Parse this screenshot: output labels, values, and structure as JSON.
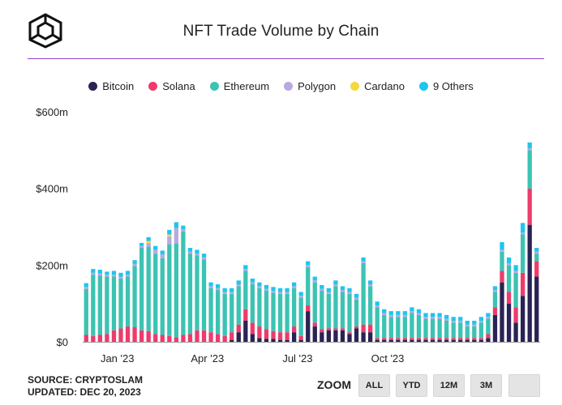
{
  "title": "NFT Trade Volume by Chain",
  "legend": [
    {
      "label": "Bitcoin",
      "color": "#2a2354"
    },
    {
      "label": "Solana",
      "color": "#ee3b6c"
    },
    {
      "label": "Ethereum",
      "color": "#3cc3b2"
    },
    {
      "label": "Polygon",
      "color": "#b9a9e0"
    },
    {
      "label": "Cardano",
      "color": "#f4d93c"
    },
    {
      "label": "9 Others",
      "color": "#1cc6ee"
    }
  ],
  "footer": {
    "source": "SOURCE: CRYPTOSLAM",
    "updated": "UPDATED: DEC 20, 2023"
  },
  "zoom": {
    "label": "ZOOM",
    "buttons": [
      "ALL",
      "YTD",
      "12M",
      "3M",
      ""
    ]
  },
  "chart_data": {
    "type": "bar",
    "stacked": true,
    "x_axis_ticks": [
      "Jan '23",
      "Apr '23",
      "Jul '23",
      "Oct '23"
    ],
    "y_axis_ticks": [
      "$0",
      "$200m",
      "$400m",
      "$600m"
    ],
    "ylim": [
      0,
      600
    ],
    "grid": false,
    "legend_position": "top",
    "series": [
      {
        "name": "Bitcoin",
        "color": "#2a2354",
        "values": [
          0,
          0,
          0,
          0,
          0,
          0,
          0,
          0,
          0,
          0,
          0,
          0,
          0,
          0,
          0,
          0,
          0,
          0,
          0,
          0,
          0,
          5,
          25,
          55,
          20,
          10,
          8,
          8,
          5,
          5,
          25,
          5,
          80,
          40,
          25,
          30,
          30,
          30,
          20,
          35,
          25,
          25,
          5,
          5,
          5,
          5,
          5,
          5,
          5,
          5,
          5,
          5,
          5,
          5,
          5,
          5,
          5,
          5,
          10,
          70,
          155,
          100,
          50,
          120,
          305,
          170
        ]
      },
      {
        "name": "Solana",
        "color": "#ee3b6c",
        "values": [
          18,
          15,
          18,
          20,
          30,
          35,
          40,
          38,
          30,
          28,
          20,
          18,
          15,
          12,
          18,
          20,
          30,
          30,
          25,
          20,
          15,
          20,
          20,
          30,
          30,
          30,
          25,
          20,
          20,
          20,
          15,
          10,
          15,
          10,
          8,
          5,
          5,
          5,
          5,
          5,
          20,
          20,
          5,
          5,
          5,
          5,
          5,
          5,
          5,
          5,
          5,
          5,
          5,
          5,
          5,
          5,
          5,
          5,
          10,
          20,
          30,
          30,
          40,
          60,
          95,
          40
        ]
      },
      {
        "name": "Ethereum",
        "color": "#3cc3b2",
        "values": [
          120,
          160,
          155,
          150,
          140,
          130,
          130,
          160,
          215,
          220,
          210,
          200,
          240,
          245,
          270,
          210,
          195,
          185,
          115,
          115,
          110,
          100,
          100,
          100,
          100,
          100,
          100,
          100,
          100,
          100,
          100,
          100,
          100,
          105,
          100,
          90,
          110,
          95,
          100,
          70,
          160,
          100,
          80,
          60,
          55,
          55,
          55,
          65,
          60,
          50,
          50,
          50,
          45,
          40,
          40,
          30,
          30,
          40,
          40,
          40,
          50,
          70,
          90,
          100,
          100,
          20
        ]
      },
      {
        "name": "Polygon",
        "color": "#b9a9e0",
        "values": [
          5,
          5,
          5,
          5,
          5,
          5,
          5,
          5,
          5,
          10,
          10,
          10,
          20,
          40,
          5,
          5,
          5,
          5,
          5,
          5,
          5,
          5,
          5,
          5,
          5,
          5,
          5,
          5,
          5,
          5,
          5,
          5,
          5,
          5,
          5,
          5,
          5,
          5,
          5,
          5,
          5,
          5,
          5,
          5,
          5,
          5,
          5,
          5,
          5,
          5,
          5,
          5,
          5,
          5,
          5,
          5,
          5,
          5,
          5,
          5,
          5,
          5,
          5,
          5,
          5,
          5
        ]
      },
      {
        "name": "Cardano",
        "color": "#f4d93c",
        "values": [
          0,
          0,
          0,
          0,
          0,
          0,
          0,
          0,
          0,
          5,
          0,
          0,
          5,
          0,
          0,
          0,
          0,
          0,
          0,
          0,
          0,
          0,
          0,
          0,
          0,
          0,
          0,
          0,
          0,
          0,
          0,
          0,
          0,
          0,
          0,
          0,
          0,
          0,
          0,
          0,
          0,
          0,
          0,
          0,
          0,
          0,
          0,
          0,
          0,
          0,
          0,
          0,
          0,
          0,
          0,
          0,
          0,
          0,
          0,
          0,
          0,
          0,
          0,
          0,
          0,
          0
        ]
      },
      {
        "name": "9 Others",
        "color": "#1cc6ee",
        "values": [
          10,
          10,
          10,
          8,
          10,
          10,
          10,
          10,
          8,
          10,
          10,
          10,
          12,
          15,
          10,
          10,
          10,
          10,
          10,
          10,
          10,
          10,
          10,
          10,
          10,
          10,
          10,
          10,
          10,
          10,
          10,
          10,
          10,
          10,
          10,
          10,
          10,
          10,
          10,
          10,
          10,
          10,
          10,
          10,
          10,
          10,
          10,
          10,
          10,
          10,
          10,
          10,
          10,
          10,
          10,
          10,
          10,
          10,
          10,
          10,
          20,
          15,
          15,
          25,
          15,
          10
        ]
      }
    ]
  }
}
